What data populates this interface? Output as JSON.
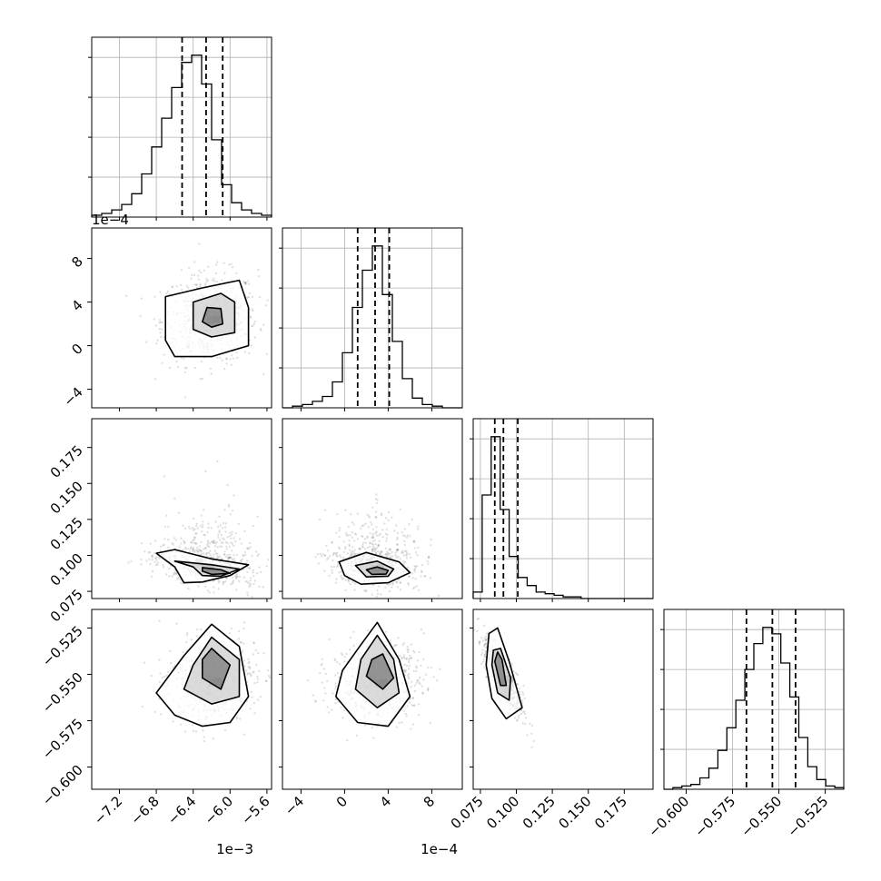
{
  "chart_data": {
    "type": "corner",
    "parameters": [
      {
        "id": "p0",
        "range": [
          -0.0075,
          -0.00555
        ],
        "ticks": [
          -0.0072,
          -0.0068,
          -0.0064,
          -0.006,
          -0.0056
        ],
        "tick_labels": [
          "−7.2",
          "−6.8",
          "−6.4",
          "−6.0",
          "−5.6"
        ],
        "offset_label": "1e−3",
        "quantiles": [
          -0.00652,
          -0.00626,
          -0.00608
        ]
      },
      {
        "id": "p1",
        "range": [
          -0.00057,
          0.00108
        ],
        "ticks": [
          -0.0004,
          0.0,
          0.0004,
          0.0008
        ],
        "tick_labels": [
          "−4",
          "0",
          "4",
          "8"
        ],
        "offset_label": "1e−4",
        "quantiles": [
          0.00012,
          0.00028,
          0.00041
        ]
      },
      {
        "id": "p2",
        "range": [
          0.07,
          0.195
        ],
        "ticks": [
          0.075,
          0.1,
          0.125,
          0.15,
          0.175
        ],
        "tick_labels": [
          "0.075",
          "0.100",
          "0.125",
          "0.150",
          "0.175"
        ],
        "offset_label": "",
        "quantiles": [
          0.085,
          0.091,
          0.101
        ]
      },
      {
        "id": "p3",
        "range": [
          -0.612,
          -0.515
        ],
        "ticks": [
          -0.6,
          -0.575,
          -0.55,
          -0.525
        ],
        "tick_labels": [
          "−0.600",
          "−0.575",
          "−0.550",
          "−0.525"
        ],
        "offset_label": "",
        "quantiles": [
          -0.5675,
          -0.5535,
          -0.541
        ]
      }
    ],
    "histograms": [
      {
        "param": "p0",
        "counts": [
          1,
          2,
          4,
          7,
          13,
          24,
          39,
          55,
          72,
          86,
          90,
          74,
          43,
          18,
          8,
          4,
          2,
          1
        ]
      },
      {
        "param": "p1",
        "counts": [
          0,
          1,
          2,
          4,
          7,
          16,
          34,
          62,
          85,
          100,
          70,
          41,
          18,
          6,
          2,
          1,
          0,
          0
        ]
      },
      {
        "param": "p2",
        "counts": [
          4,
          64,
          100,
          55,
          26,
          13,
          8,
          4,
          3,
          2,
          1,
          1,
          0,
          0,
          0,
          0,
          0,
          0,
          0,
          0
        ]
      },
      {
        "param": "p3",
        "counts": [
          0,
          1,
          2,
          3,
          7,
          13,
          24,
          38,
          55,
          74,
          90,
          100,
          96,
          78,
          57,
          32,
          14,
          6,
          2,
          1
        ]
      }
    ],
    "joint": [
      {
        "x": "p0",
        "y": "p1",
        "mean": [
          -0.00622,
          0.00025
        ],
        "sd": [
          0.00026,
          0.00021
        ],
        "corr": 0.05,
        "contours": [
          {
            "level": 1,
            "points": [
              [
                -0.0067,
                5e-05
              ],
              [
                -0.0067,
                0.00045
              ],
              [
                -0.0063,
                0.00053
              ],
              [
                -0.0059,
                0.0006
              ],
              [
                -0.0058,
                0.00035
              ],
              [
                -0.0058,
                0.0
              ],
              [
                -0.0062,
                -0.0001
              ],
              [
                -0.0066,
                -0.0001
              ]
            ]
          },
          {
            "level": 2,
            "points": [
              [
                -0.0064,
                0.00015
              ],
              [
                -0.0064,
                0.0004
              ],
              [
                -0.0061,
                0.00048
              ],
              [
                -0.00595,
                0.0004
              ],
              [
                -0.00595,
                0.00012
              ],
              [
                -0.0062,
                8e-05
              ]
            ]
          },
          {
            "level": 3,
            "points": [
              [
                -0.0063,
                0.00022
              ],
              [
                -0.00625,
                0.00035
              ],
              [
                -0.0061,
                0.00034
              ],
              [
                -0.00608,
                0.0002
              ],
              [
                -0.0062,
                0.00017
              ]
            ]
          }
        ]
      },
      {
        "x": "p0",
        "y": "p2",
        "mean": [
          -0.00628,
          0.092
        ],
        "sd": [
          0.00028,
          0.0075
        ],
        "corr": -0.45,
        "contours": [
          {
            "level": 1,
            "points": [
              [
                -0.0068,
                0.1015
              ],
              [
                -0.0066,
                0.104
              ],
              [
                -0.0062,
                0.0975
              ],
              [
                -0.0058,
                0.0935
              ],
              [
                -0.006,
                0.086
              ],
              [
                -0.0063,
                0.0815
              ],
              [
                -0.0065,
                0.081
              ],
              [
                -0.0066,
                0.092
              ]
            ]
          },
          {
            "level": 2,
            "points": [
              [
                -0.0066,
                0.096
              ],
              [
                -0.0062,
                0.0935
              ],
              [
                -0.0059,
                0.0905
              ],
              [
                -0.0061,
                0.0855
              ],
              [
                -0.0063,
                0.086
              ],
              [
                -0.0064,
                0.092
              ]
            ]
          },
          {
            "level": 3,
            "points": [
              [
                -0.0063,
                0.0915
              ],
              [
                -0.0061,
                0.09
              ],
              [
                -0.006,
                0.0875
              ],
              [
                -0.0062,
                0.0868
              ],
              [
                -0.0063,
                0.089
              ]
            ]
          }
        ]
      },
      {
        "x": "p1",
        "y": "p2",
        "mean": [
          0.00027,
          0.092
        ],
        "sd": [
          0.00021,
          0.0075
        ],
        "corr": -0.2,
        "contours": [
          {
            "level": 1,
            "points": [
              [
                -5e-05,
                0.0955
              ],
              [
                0.0002,
                0.102
              ],
              [
                0.0005,
                0.0955
              ],
              [
                0.0006,
                0.088
              ],
              [
                0.0004,
                0.081
              ],
              [
                0.00015,
                0.08
              ],
              [
                0.0,
                0.086
              ]
            ]
          },
          {
            "level": 2,
            "points": [
              [
                0.0001,
                0.093
              ],
              [
                0.0003,
                0.096
              ],
              [
                0.00045,
                0.0905
              ],
              [
                0.0004,
                0.0855
              ],
              [
                0.0002,
                0.085
              ]
            ]
          },
          {
            "level": 3,
            "points": [
              [
                0.0002,
                0.09
              ],
              [
                0.0003,
                0.092
              ],
              [
                0.0004,
                0.0895
              ],
              [
                0.00038,
                0.087
              ],
              [
                0.00025,
                0.0868
              ]
            ]
          }
        ]
      },
      {
        "x": "p0",
        "y": "p3",
        "mean": [
          -0.0062,
          -0.5535
        ],
        "sd": [
          0.00024,
          0.011
        ],
        "corr": 0.1,
        "contours": [
          {
            "level": 1,
            "points": [
              [
                -0.0068,
                -0.56
              ],
              [
                -0.0066,
                -0.572
              ],
              [
                -0.0063,
                -0.578
              ],
              [
                -0.006,
                -0.576
              ],
              [
                -0.0058,
                -0.562
              ],
              [
                -0.0059,
                -0.535
              ],
              [
                -0.0062,
                -0.523
              ],
              [
                -0.0065,
                -0.54
              ]
            ]
          },
          {
            "level": 2,
            "points": [
              [
                -0.0065,
                -0.558
              ],
              [
                -0.0062,
                -0.566
              ],
              [
                -0.0059,
                -0.562
              ],
              [
                -0.0059,
                -0.542
              ],
              [
                -0.0062,
                -0.53
              ],
              [
                -0.0064,
                -0.545
              ]
            ]
          },
          {
            "level": 3,
            "points": [
              [
                -0.0063,
                -0.552
              ],
              [
                -0.0061,
                -0.558
              ],
              [
                -0.006,
                -0.545
              ],
              [
                -0.0062,
                -0.536
              ],
              [
                -0.0063,
                -0.542
              ]
            ]
          }
        ]
      },
      {
        "x": "p1",
        "y": "p3",
        "mean": [
          0.0003,
          -0.554
        ],
        "sd": [
          0.00021,
          0.011
        ],
        "corr": 0.1,
        "contours": [
          {
            "level": 1,
            "points": [
              [
                -8e-05,
                -0.562
              ],
              [
                0.00012,
                -0.576
              ],
              [
                0.0004,
                -0.578
              ],
              [
                0.0006,
                -0.562
              ],
              [
                0.0005,
                -0.542
              ],
              [
                0.0003,
                -0.522
              ],
              [
                0.00015,
                -0.534
              ],
              [
                -2e-05,
                -0.548
              ]
            ]
          },
          {
            "level": 2,
            "points": [
              [
                0.0001,
                -0.558
              ],
              [
                0.0003,
                -0.568
              ],
              [
                0.0005,
                -0.56
              ],
              [
                0.00045,
                -0.542
              ],
              [
                0.0003,
                -0.529
              ],
              [
                0.00015,
                -0.542
              ]
            ]
          },
          {
            "level": 3,
            "points": [
              [
                0.0002,
                -0.551
              ],
              [
                0.00035,
                -0.558
              ],
              [
                0.00045,
                -0.552
              ],
              [
                0.00035,
                -0.539
              ],
              [
                0.00025,
                -0.542
              ]
            ]
          }
        ]
      },
      {
        "x": "p2",
        "y": "p3",
        "mean": [
          0.091,
          -0.552
        ],
        "sd": [
          0.007,
          0.0105
        ],
        "corr": -0.8,
        "contours": [
          {
            "level": 1,
            "points": [
              [
                0.079,
                -0.545
              ],
              [
                0.083,
                -0.563
              ],
              [
                0.093,
                -0.574
              ],
              [
                0.104,
                -0.568
              ],
              [
                0.095,
                -0.543
              ],
              [
                0.087,
                -0.525
              ],
              [
                0.081,
                -0.528
              ]
            ]
          },
          {
            "level": 2,
            "points": [
              [
                0.083,
                -0.545
              ],
              [
                0.087,
                -0.56
              ],
              [
                0.095,
                -0.564
              ],
              [
                0.096,
                -0.552
              ],
              [
                0.089,
                -0.536
              ],
              [
                0.084,
                -0.537
              ]
            ]
          },
          {
            "level": 3,
            "points": [
              [
                0.085,
                -0.543
              ],
              [
                0.089,
                -0.556
              ],
              [
                0.093,
                -0.556
              ],
              [
                0.09,
                -0.542
              ],
              [
                0.087,
                -0.538
              ]
            ]
          }
        ]
      }
    ],
    "grid": true,
    "colors": {
      "axis": "#000000",
      "grid": "#b0b0b0",
      "scatter": "#000000",
      "contour": "#000000",
      "histogram": "#000000"
    }
  }
}
